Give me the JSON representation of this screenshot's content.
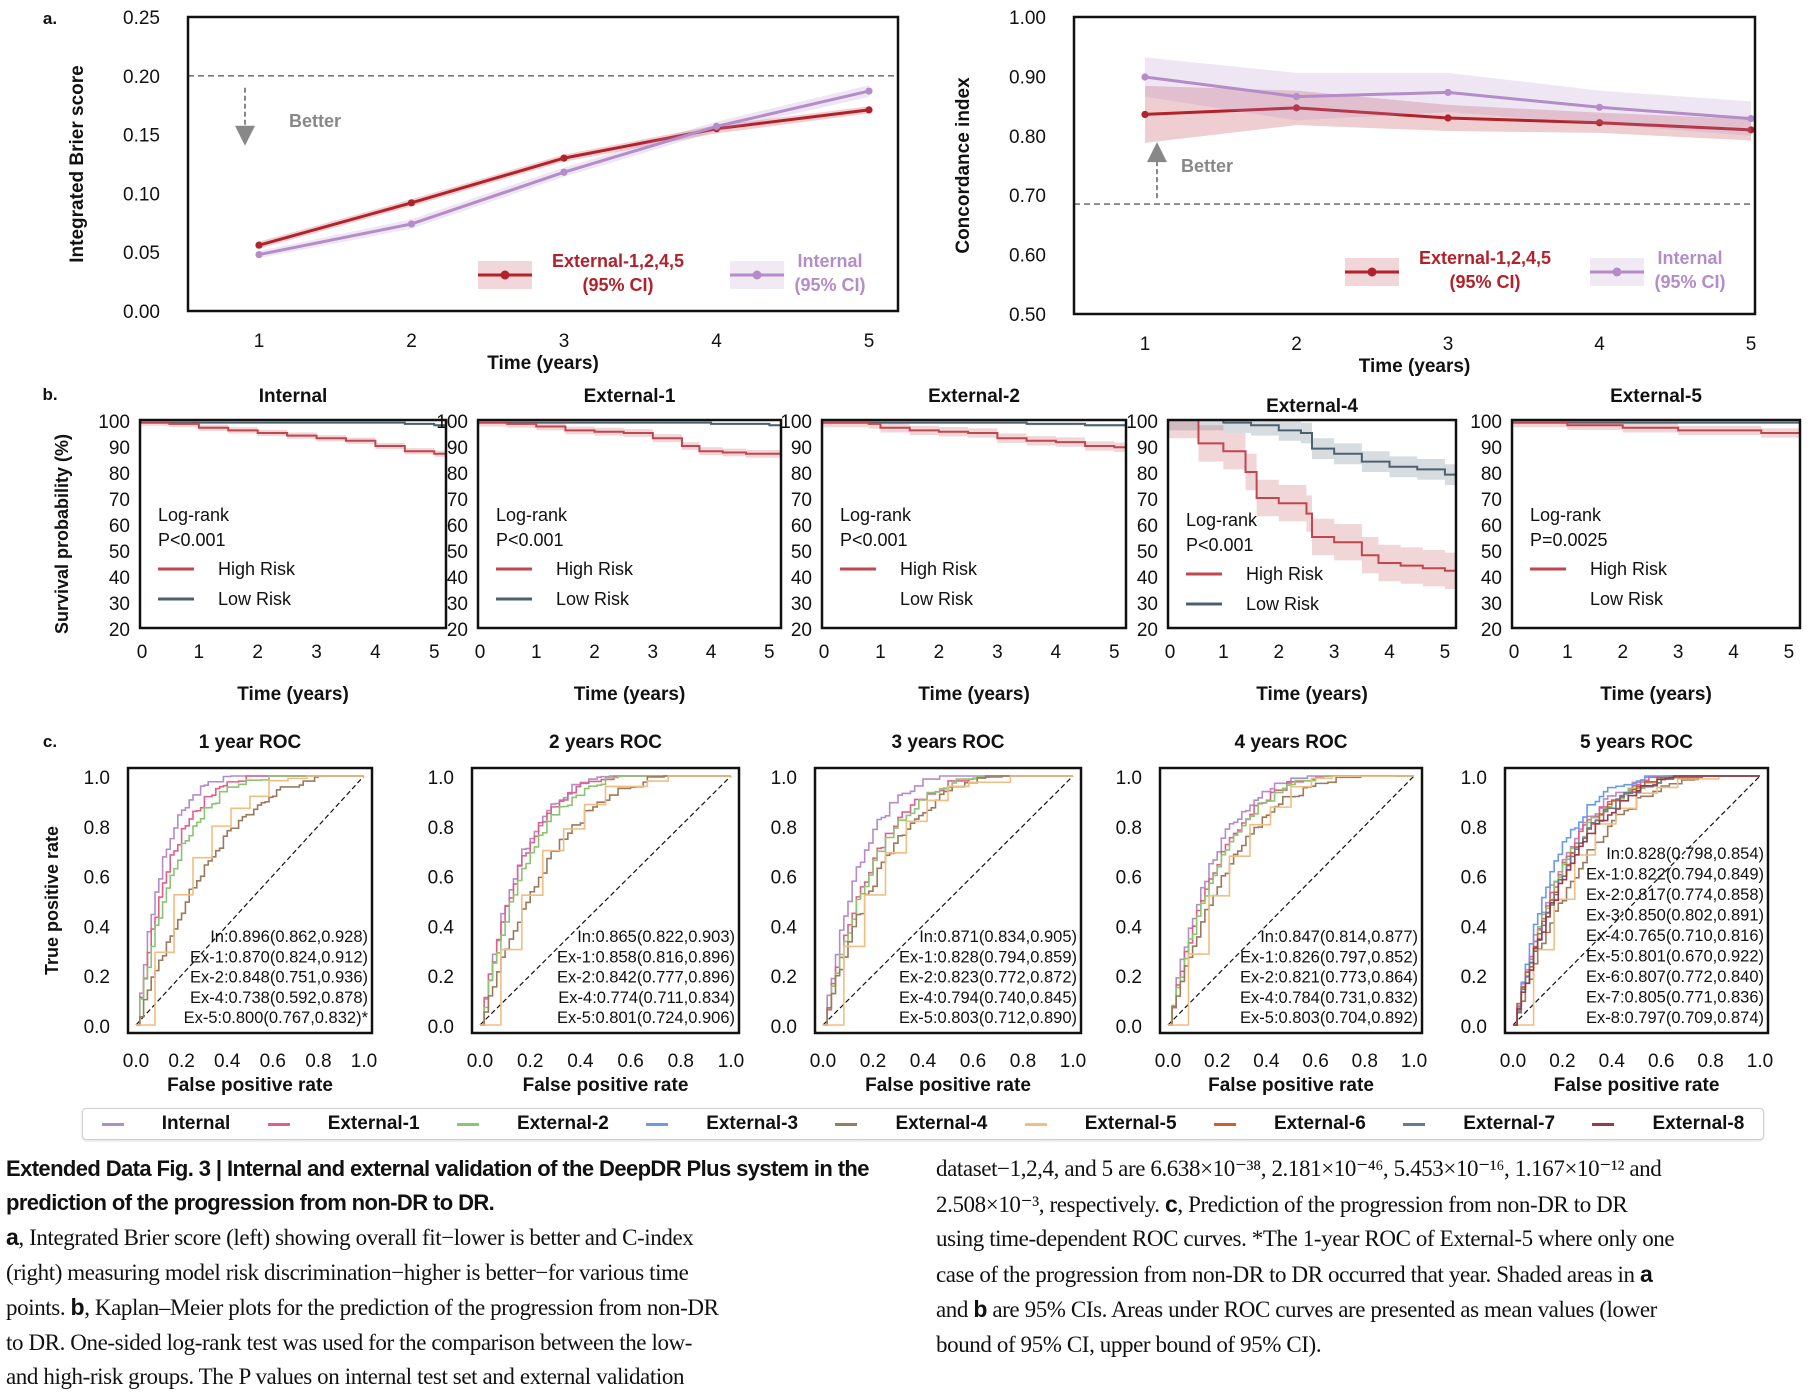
{
  "figure": {
    "panel_labels": {
      "a": "a.",
      "b": "b.",
      "c": "c."
    },
    "colors": {
      "external_main": "#b2222b",
      "internal_main": "#b48cc8",
      "high_risk": "#c0464f",
      "low_risk": "#4b6170",
      "reference": "#888888"
    }
  },
  "chart_data": [
    {
      "id": "brier",
      "type": "line",
      "title": "",
      "xlabel": "Time (years)",
      "ylabel": "Integrated Brier score",
      "x": [
        1,
        2,
        3,
        4,
        5
      ],
      "x_ticks": [
        "1",
        "2",
        "3",
        "4",
        "5"
      ],
      "y_ticks": [
        "0.00",
        "0.05",
        "0.10",
        "0.15",
        "0.20",
        "0.25"
      ],
      "ylim": [
        0,
        0.25
      ],
      "reference_line": 0.2,
      "annotation": "Better",
      "annotation_direction": "down",
      "series": [
        {
          "name": "External-1,2,4,5",
          "legend_line2": "(95% CI)",
          "color": "#b2222b",
          "values": [
            0.056,
            0.092,
            0.13,
            0.155,
            0.171
          ],
          "ci_low": [
            0.053,
            0.089,
            0.127,
            0.151,
            0.168
          ],
          "ci_high": [
            0.059,
            0.095,
            0.133,
            0.158,
            0.174
          ]
        },
        {
          "name": "Internal",
          "legend_line2": "(95% CI)",
          "color": "#b48cc8",
          "values": [
            0.048,
            0.074,
            0.118,
            0.157,
            0.187
          ],
          "ci_low": [
            0.045,
            0.07,
            0.114,
            0.153,
            0.182
          ],
          "ci_high": [
            0.051,
            0.078,
            0.122,
            0.161,
            0.192
          ]
        }
      ],
      "legend": "lower-right"
    },
    {
      "id": "cindex",
      "type": "line",
      "title": "",
      "xlabel": "Time (years)",
      "ylabel": "Concordance index",
      "x": [
        1,
        2,
        3,
        4,
        5
      ],
      "x_ticks": [
        "1",
        "2",
        "3",
        "4",
        "5"
      ],
      "y_ticks": [
        "0.50",
        "0.60",
        "0.70",
        "0.80",
        "0.90",
        "1.00"
      ],
      "ylim": [
        0.5,
        1.0
      ],
      "reference_line": 0.685,
      "annotation": "Better",
      "annotation_direction": "up",
      "series": [
        {
          "name": "External-1,2,4,5",
          "legend_line2": "(95% CI)",
          "color": "#b2222b",
          "values": [
            0.836,
            0.847,
            0.83,
            0.822,
            0.81
          ],
          "ci_low": [
            0.788,
            0.818,
            0.808,
            0.805,
            0.792
          ],
          "ci_high": [
            0.884,
            0.876,
            0.852,
            0.839,
            0.828
          ]
        },
        {
          "name": "Internal",
          "legend_line2": "(95% CI)",
          "color": "#b48cc8",
          "values": [
            0.899,
            0.866,
            0.873,
            0.848,
            0.829
          ],
          "ci_low": [
            0.866,
            0.826,
            0.84,
            0.82,
            0.8
          ],
          "ci_high": [
            0.932,
            0.906,
            0.906,
            0.876,
            0.858
          ]
        }
      ],
      "legend": "lower-right"
    },
    {
      "id": "km",
      "type": "line",
      "ylabel": "Survival probability (%)",
      "xlabel": "Time (years)",
      "x_ticks": [
        "0",
        "1",
        "2",
        "3",
        "4",
        "5"
      ],
      "y_ticks": [
        "20",
        "30",
        "40",
        "50",
        "60",
        "70",
        "80",
        "90",
        "100"
      ],
      "ylim": [
        20,
        100
      ],
      "xlim": [
        0,
        5.2
      ],
      "legend_title": "Log-rank",
      "legend_labels": {
        "high": "High Risk",
        "low": "Low Risk"
      },
      "panels": [
        {
          "title": "Internal",
          "p": "P<0.001",
          "show_low_swatch": true,
          "high": {
            "t": [
              0,
              0.5,
              1,
              1.5,
              2,
              2.5,
              3,
              3.5,
              4,
              4.5,
              5,
              5.2
            ],
            "s": [
              99,
              98.5,
              97,
              96,
              95,
              94,
              93,
              92,
              90,
              88,
              87,
              86.5
            ],
            "ci": 1.2
          },
          "low": {
            "t": [
              0,
              1,
              2,
              3,
              4,
              4.5,
              5,
              5.2
            ],
            "s": [
              99,
              99,
              99,
              99,
              99,
              98.5,
              98,
              97.5
            ],
            "ci": 0.4
          }
        },
        {
          "title": "External-1",
          "p": "P<0.001",
          "show_low_swatch": true,
          "high": {
            "t": [
              0,
              0.5,
              1,
              1.5,
              2,
              2.5,
              3,
              3.5,
              3.8,
              4.2,
              4.6,
              5,
              5.2
            ],
            "s": [
              99,
              98.5,
              97.5,
              96,
              95.5,
              95,
              93,
              90,
              88,
              87.5,
              87,
              87,
              87
            ],
            "ci": 1.5
          },
          "low": {
            "t": [
              0,
              2,
              3,
              4,
              5,
              5.2
            ],
            "s": [
              99,
              99,
              99,
              98.5,
              98,
              98
            ],
            "ci": 0.4
          }
        },
        {
          "title": "External-2",
          "p": "P<0.001",
          "show_low_swatch": false,
          "high": {
            "t": [
              0,
              0.8,
              1,
              1.5,
              2,
              2.5,
              3,
              3.5,
              4,
              4.5,
              5,
              5.2
            ],
            "s": [
              99,
              98.5,
              97,
              96,
              95.5,
              95,
              93,
              92,
              91.5,
              90,
              89.5,
              89.5
            ],
            "ci": 1.8
          },
          "low": {
            "t": [
              0,
              2.5,
              3.5,
              4.5,
              5.2
            ],
            "s": [
              99,
              99,
              98.5,
              98,
              97.5
            ],
            "ci": 0.5
          }
        },
        {
          "title": "External-4",
          "p": "P<0.001",
          "show_low_swatch": true,
          "high": {
            "t": [
              0,
              0.5,
              0.55,
              1,
              1.4,
              1.6,
              2,
              2.5,
              2.6,
              3,
              3.5,
              3.8,
              4.2,
              4.6,
              5,
              5.2
            ],
            "s": [
              100,
              100,
              91,
              88,
              80,
              70,
              68,
              64,
              55,
              53,
              48,
              45,
              44,
              43,
              42,
              42
            ],
            "ci": 7
          },
          "low": {
            "t": [
              0,
              0.5,
              1,
              1.5,
              2,
              2.4,
              2.6,
              3,
              3.5,
              4,
              4.5,
              5,
              5.2
            ],
            "s": [
              100,
              100,
              99,
              98,
              96,
              95,
              89,
              87,
              84,
              82,
              81,
              79,
              78
            ],
            "ci": 4
          }
        },
        {
          "title": "External-5",
          "p": "P=0.0025",
          "show_low_swatch": false,
          "high": {
            "t": [
              0,
              1,
              2,
              3,
              4,
              4.5,
              5,
              5.2
            ],
            "s": [
              99,
              98,
              97,
              96,
              96,
              95,
              95,
              95
            ],
            "ci": 1.8
          },
          "low": {
            "t": [
              0,
              1,
              5,
              5.2
            ],
            "s": [
              99,
              99,
              99,
              99
            ],
            "ci": 0.4
          }
        }
      ]
    },
    {
      "id": "roc",
      "type": "line",
      "xlabel": "False positive rate",
      "ylabel": "True positive rate",
      "x_ticks": [
        "0.0",
        "0.2",
        "0.4",
        "0.6",
        "0.8",
        "1.0"
      ],
      "y_ticks": [
        "0.0",
        "0.2",
        "0.4",
        "0.6",
        "0.8",
        "1.0"
      ],
      "xlim": [
        0,
        1
      ],
      "ylim": [
        0,
        1
      ],
      "legend": {
        "items": [
          {
            "name": "Internal",
            "color": "#b48cc8"
          },
          {
            "name": "External-1",
            "color": "#e0608c"
          },
          {
            "name": "External-2",
            "color": "#8cc474"
          },
          {
            "name": "External-3",
            "color": "#6a9ae8"
          },
          {
            "name": "External-4",
            "color": "#9a7a5c"
          },
          {
            "name": "External-5",
            "color": "#f0be82"
          },
          {
            "name": "External-6",
            "color": "#d26022"
          },
          {
            "name": "External-7",
            "color": "#6a7892"
          },
          {
            "name": "External-8",
            "color": "#9a3a46"
          }
        ]
      },
      "panels": [
        {
          "title": "1 year ROC",
          "auc_labels": [
            "In:0.896(0.862,0.928)",
            "Ex-1:0.870(0.824,0.912)",
            "Ex-2:0.848(0.751,0.936)",
            "Ex-4:0.738(0.592,0.878)",
            "Ex-5:0.800(0.767,0.832)*"
          ],
          "curves": [
            {
              "series": "Internal",
              "auc": 0.896
            },
            {
              "series": "External-1",
              "auc": 0.87
            },
            {
              "series": "External-2",
              "auc": 0.848
            },
            {
              "series": "External-4",
              "auc": 0.738
            },
            {
              "series": "External-5",
              "auc": 0.8
            }
          ]
        },
        {
          "title": "2 years ROC",
          "auc_labels": [
            "In:0.865(0.822,0.903)",
            "Ex-1:0.858(0.816,0.896)",
            "Ex-2:0.842(0.777,0.896)",
            "Ex-4:0.774(0.711,0.834)",
            "Ex-5:0.801(0.724,0.906)"
          ],
          "curves": [
            {
              "series": "Internal",
              "auc": 0.865
            },
            {
              "series": "External-1",
              "auc": 0.858
            },
            {
              "series": "External-2",
              "auc": 0.842
            },
            {
              "series": "External-4",
              "auc": 0.774
            },
            {
              "series": "External-5",
              "auc": 0.801
            }
          ]
        },
        {
          "title": "3 years ROC",
          "auc_labels": [
            "In:0.871(0.834,0.905)",
            "Ex-1:0.828(0.794,0.859)",
            "Ex-2:0.823(0.772,0.872)",
            "Ex-4:0.794(0.740,0.845)",
            "Ex-5:0.803(0.712,0.890)"
          ],
          "curves": [
            {
              "series": "Internal",
              "auc": 0.871
            },
            {
              "series": "External-1",
              "auc": 0.828
            },
            {
              "series": "External-2",
              "auc": 0.823
            },
            {
              "series": "External-4",
              "auc": 0.794
            },
            {
              "series": "External-5",
              "auc": 0.803
            }
          ]
        },
        {
          "title": "4 years ROC",
          "auc_labels": [
            "In:0.847(0.814,0.877)",
            "Ex-1:0.826(0.797,0.852)",
            "Ex-2:0.821(0.773,0.864)",
            "Ex-4:0.784(0.731,0.832)",
            "Ex-5:0.803(0.704,0.892)"
          ],
          "curves": [
            {
              "series": "Internal",
              "auc": 0.847
            },
            {
              "series": "External-1",
              "auc": 0.826
            },
            {
              "series": "External-2",
              "auc": 0.821
            },
            {
              "series": "External-4",
              "auc": 0.784
            },
            {
              "series": "External-5",
              "auc": 0.803
            }
          ]
        },
        {
          "title": "5 years ROC",
          "auc_labels": [
            "In:0.828(0.798,0.854)",
            "Ex-1:0.822(0.794,0.849)",
            "Ex-2:0.817(0.774,0.858)",
            "Ex-3:0.850(0.802,0.891)",
            "Ex-4:0.765(0.710,0.816)",
            "Ex-5:0.801(0.670,0.922)",
            "Ex-6:0.807(0.772,0.840)",
            "Ex-7:0.805(0.771,0.836)",
            "Ex-8:0.797(0.709,0.874)"
          ],
          "curves": [
            {
              "series": "Internal",
              "auc": 0.828
            },
            {
              "series": "External-1",
              "auc": 0.822
            },
            {
              "series": "External-2",
              "auc": 0.817
            },
            {
              "series": "External-3",
              "auc": 0.85
            },
            {
              "series": "External-4",
              "auc": 0.765
            },
            {
              "series": "External-5",
              "auc": 0.801
            },
            {
              "series": "External-6",
              "auc": 0.807
            },
            {
              "series": "External-7",
              "auc": 0.805
            },
            {
              "series": "External-8",
              "auc": 0.797
            }
          ]
        }
      ]
    }
  ],
  "caption": {
    "title": "Extended Data Fig. 3 | Internal and external validation of the DeepDR Plus system in the prediction of the progression from non-DR to DR.",
    "left_lines": [
      "a, Integrated Brier score (left) showing overall fit−lower is better and C-index",
      "(right) measuring model risk discrimination−higher is better−for various time",
      "points. b, Kaplan–Meier plots for the prediction of the progression from non-DR",
      "to DR. One-sided log-rank test was used for the comparison between the low-",
      "and high-risk groups. The P values on internal test set and external validation"
    ],
    "right_lines": [
      "dataset−1,2,4, and 5 are 6.638×10⁻³⁸, 2.181×10⁻⁴⁶, 5.453×10⁻¹⁶, 1.167×10⁻¹² and",
      "2.508×10⁻³, respectively. c, Prediction of the progression from non-DR to DR",
      "using time-dependent ROC curves. *The 1-year ROC of External-5 where only one",
      "case of the progression from non-DR to DR occurred that year. Shaded areas in a",
      "and b are 95% CIs. Areas under ROC curves are presented as mean values (lower",
      "bound of 95% CI, upper bound of 95% CI)."
    ]
  }
}
